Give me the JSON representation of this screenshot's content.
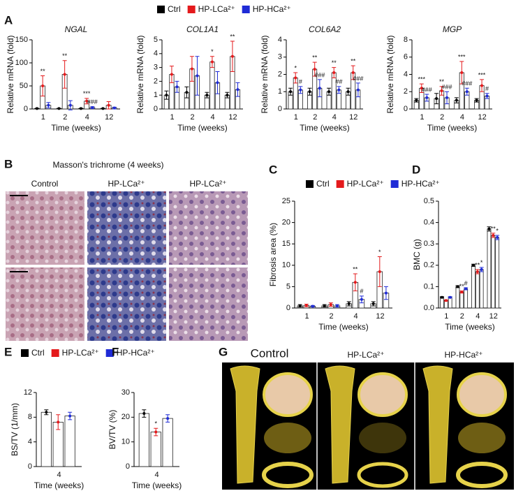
{
  "chart_data": [
    {
      "type": "bar",
      "panel": "A",
      "title": "NGAL",
      "ylabel": "Relative mRNA (fold)",
      "xlabel": "Time (weeks)",
      "categories": [
        "1",
        "2",
        "4",
        "12"
      ],
      "ylim": [
        0,
        150
      ],
      "yticks": [
        0,
        50,
        100,
        150
      ],
      "series": [
        {
          "name": "Ctrl",
          "color": "#000000",
          "values": [
            1,
            1,
            1,
            1
          ],
          "errors": [
            0.5,
            0.5,
            0.5,
            0.5
          ]
        },
        {
          "name": "HP-LCa²⁺",
          "color": "#e41a1c",
          "values": [
            50,
            75,
            17,
            8
          ],
          "errors": [
            22,
            30,
            6,
            8
          ]
        },
        {
          "name": "HP-HCa²⁺",
          "color": "#1f2bd6",
          "values": [
            8,
            8,
            3,
            2
          ],
          "errors": [
            6,
            10,
            2,
            2
          ]
        }
      ],
      "annotations": [
        {
          "text": "**",
          "category": 0,
          "series": 1
        },
        {
          "text": "**",
          "category": 1,
          "series": 1
        },
        {
          "text": "***",
          "category": 2,
          "series": 1
        },
        {
          "text": "###",
          "category": 2,
          "series": 2
        }
      ]
    },
    {
      "type": "bar",
      "title": "COL1A1",
      "ylabel": "Relative mRNA (fold)",
      "xlabel": "Time (weeks)",
      "categories": [
        "1",
        "2",
        "4",
        "12"
      ],
      "ylim": [
        0,
        5
      ],
      "yticks": [
        0,
        1,
        2,
        3,
        4,
        5
      ],
      "series": [
        {
          "color": "#000000",
          "values": [
            1.0,
            1.2,
            1.0,
            1.0
          ],
          "errors": [
            0.3,
            0.4,
            0.2,
            0.2
          ]
        },
        {
          "color": "#e41a1c",
          "values": [
            2.5,
            2.9,
            3.4,
            3.8
          ],
          "errors": [
            0.6,
            0.9,
            0.4,
            1.1
          ]
        },
        {
          "color": "#1f2bd6",
          "values": [
            1.6,
            2.4,
            1.9,
            1.4
          ],
          "errors": [
            0.4,
            1.4,
            0.8,
            0.5
          ]
        }
      ],
      "annotations": [
        {
          "text": "*",
          "category": 2,
          "series": 1
        },
        {
          "text": "**",
          "category": 3,
          "series": 1
        }
      ]
    },
    {
      "type": "bar",
      "title": "COL6A2",
      "ylabel": "Relative mRNA (fold)",
      "xlabel": "Time (weeks)",
      "categories": [
        "1",
        "2",
        "4",
        "12"
      ],
      "ylim": [
        0,
        4
      ],
      "yticks": [
        0,
        1,
        2,
        3,
        4
      ],
      "series": [
        {
          "color": "#000000",
          "values": [
            1.0,
            1.0,
            1.0,
            1.0
          ],
          "errors": [
            0.2,
            0.2,
            0.2,
            0.2
          ]
        },
        {
          "color": "#e41a1c",
          "values": [
            1.8,
            2.3,
            2.1,
            2.1
          ],
          "errors": [
            0.3,
            0.4,
            0.3,
            0.4
          ]
        },
        {
          "color": "#1f2bd6",
          "values": [
            1.1,
            1.2,
            1.1,
            1.1
          ],
          "errors": [
            0.2,
            0.5,
            0.2,
            0.4
          ]
        }
      ],
      "annotations": [
        {
          "text": "*",
          "category": 0,
          "series": 1
        },
        {
          "text": "**",
          "category": 1,
          "series": 1
        },
        {
          "text": "**",
          "category": 2,
          "series": 1
        },
        {
          "text": "**",
          "category": 3,
          "series": 1
        },
        {
          "text": "#",
          "category": 0,
          "series": 2
        },
        {
          "text": "###",
          "category": 1,
          "series": 2
        },
        {
          "text": "##",
          "category": 2,
          "series": 2
        },
        {
          "text": "###",
          "category": 3,
          "series": 2
        }
      ]
    },
    {
      "type": "bar",
      "title": "MGP",
      "ylabel": "Relative mRNA (fold)",
      "xlabel": "Time (weeks)",
      "categories": [
        "1",
        "2",
        "4",
        "12"
      ],
      "ylim": [
        0,
        8
      ],
      "yticks": [
        0,
        2,
        4,
        6,
        8
      ],
      "series": [
        {
          "color": "#000000",
          "values": [
            1.0,
            1.2,
            1.0,
            1.0
          ],
          "errors": [
            0.2,
            0.6,
            0.3,
            0.2
          ]
        },
        {
          "color": "#e41a1c",
          "values": [
            2.4,
            2.1,
            4.2,
            2.7
          ],
          "errors": [
            0.5,
            0.5,
            1.3,
            0.7
          ]
        },
        {
          "color": "#1f2bd6",
          "values": [
            1.3,
            1.3,
            2.0,
            1.5
          ],
          "errors": [
            0.4,
            0.7,
            0.4,
            0.3
          ]
        }
      ],
      "annotations": [
        {
          "text": "***",
          "category": 0,
          "series": 1
        },
        {
          "text": "**",
          "category": 1,
          "series": 1
        },
        {
          "text": "***",
          "category": 2,
          "series": 1
        },
        {
          "text": "***",
          "category": 3,
          "series": 1
        },
        {
          "text": "###",
          "category": 0,
          "series": 2
        },
        {
          "text": "###",
          "category": 1,
          "series": 2
        },
        {
          "text": "###",
          "category": 2,
          "series": 2
        },
        {
          "text": "#",
          "category": 3,
          "series": 2
        }
      ]
    },
    {
      "type": "bar",
      "panel": "C",
      "ylabel": "Fibrosis area (%)",
      "xlabel": "Time (weeks)",
      "categories": [
        "1",
        "2",
        "4",
        "12"
      ],
      "ylim": [
        0,
        25
      ],
      "yticks": [
        0,
        5,
        10,
        15,
        20,
        25
      ],
      "series": [
        {
          "name": "Ctrl",
          "color": "#000000",
          "values": [
            0.5,
            0.5,
            1.0,
            1.0
          ],
          "errors": [
            0.3,
            0.3,
            0.5,
            0.5
          ]
        },
        {
          "name": "HP-LCa²⁺",
          "color": "#e41a1c",
          "values": [
            0.6,
            0.8,
            6.0,
            8.5
          ],
          "errors": [
            0.3,
            0.4,
            2.0,
            3.5
          ]
        },
        {
          "name": "HP-HCa²⁺",
          "color": "#1f2bd6",
          "values": [
            0.4,
            0.5,
            2.0,
            3.5
          ],
          "errors": [
            0.2,
            0.3,
            0.8,
            1.5
          ]
        }
      ],
      "annotations": [
        {
          "text": "**",
          "category": 2,
          "series": 1
        },
        {
          "text": "#",
          "category": 2,
          "series": 2
        },
        {
          "text": "*",
          "category": 3,
          "series": 1
        }
      ]
    },
    {
      "type": "bar",
      "panel": "D",
      "ylabel": "BMC (g)",
      "xlabel": "Time (weeks)",
      "categories": [
        "1",
        "2",
        "4",
        "12"
      ],
      "ylim": [
        0,
        0.5
      ],
      "yticks": [
        {
          "value": 0,
          "label": "0.0"
        },
        0.1,
        0.2,
        0.3,
        0.4,
        0.5
      ],
      "series": [
        {
          "color": "#000000",
          "values": [
            0.05,
            0.1,
            0.2,
            0.37
          ],
          "errors": [
            0.003,
            0.005,
            0.005,
            0.01
          ]
        },
        {
          "color": "#e41a1c",
          "values": [
            0.035,
            0.075,
            0.17,
            0.34
          ],
          "errors": [
            0.003,
            0.005,
            0.01,
            0.01
          ]
        },
        {
          "color": "#1f2bd6",
          "values": [
            0.05,
            0.09,
            0.18,
            0.33
          ],
          "errors": [
            0.003,
            0.005,
            0.01,
            0.01
          ]
        }
      ],
      "annotations": [
        {
          "text": "**",
          "category": 1,
          "series": 1
        },
        {
          "text": "#",
          "category": 1,
          "series": 2
        },
        {
          "text": "**",
          "category": 2,
          "series": 1
        },
        {
          "text": "*",
          "category": 2,
          "series": 2
        },
        {
          "text": "**",
          "category": 3,
          "series": 1
        },
        {
          "text": "*",
          "category": 3,
          "series": 2
        }
      ]
    },
    {
      "type": "bar",
      "panel": "E",
      "ylabel": "BS/TV (1/mm)",
      "xlabel": "Time (weeks)",
      "categories": [
        "4"
      ],
      "ylim": [
        0,
        12
      ],
      "yticks": [
        0,
        4,
        8,
        12
      ],
      "series": [
        {
          "name": "Ctrl",
          "color": "#000000",
          "values": [
            8.8
          ],
          "errors": [
            0.4
          ]
        },
        {
          "name": "HP-LCa²⁺",
          "color": "#e41a1c",
          "values": [
            7.2
          ],
          "errors": [
            1.2
          ]
        },
        {
          "name": "HP-HCa²⁺",
          "color": "#1f2bd6",
          "values": [
            8.2
          ],
          "errors": [
            0.6
          ]
        }
      ]
    },
    {
      "type": "bar",
      "panel": "F",
      "ylabel": "BV/TV (%)",
      "xlabel": "Time (weeks)",
      "categories": [
        "4"
      ],
      "ylim": [
        0,
        30
      ],
      "yticks": [
        0,
        10,
        20,
        30
      ],
      "series": [
        {
          "color": "#000000",
          "values": [
            21.5
          ],
          "errors": [
            1.5
          ]
        },
        {
          "color": "#e41a1c",
          "values": [
            14
          ],
          "errors": [
            1.5
          ]
        },
        {
          "color": "#1f2bd6",
          "values": [
            19.5
          ],
          "errors": [
            1.5
          ]
        }
      ],
      "annotations": [
        {
          "text": "*",
          "category": 0,
          "series": 1
        }
      ]
    }
  ],
  "histology": {
    "panel": "B",
    "title": "Masson's trichrome (4 weeks)",
    "columns": [
      "Control",
      "HP-LCa²⁺",
      "HP-LCa²⁺"
    ]
  },
  "microct": {
    "panel": "G",
    "columns": [
      "Control",
      "HP-LCa²⁺",
      "HP-HCa²⁺"
    ]
  }
}
